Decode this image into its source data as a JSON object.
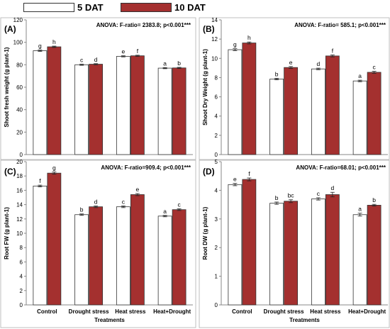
{
  "legend": {
    "series1_label": "5 DAT",
    "series2_label": "10 DAT"
  },
  "colors": {
    "series1_fill": "#ffffff",
    "series2_fill": "#a4302f",
    "bar_stroke": "#333333"
  },
  "chart_data": [
    {
      "type": "bar",
      "panel": "(A)",
      "anova": "ANOVA: F-ratio= 2383.8; p<0.001***",
      "ylabel": "Shoot fresh weight (g plant-1)",
      "xlabel": "",
      "ylim": [
        0,
        120
      ],
      "yticks": [
        0,
        20,
        40,
        60,
        80,
        100,
        120
      ],
      "categories": [
        "",
        "",
        "",
        ""
      ],
      "series": [
        {
          "values": [
            92.5,
            80.0,
            87.5,
            77.0
          ],
          "errors": [
            0.6,
            0.5,
            0.5,
            0.5
          ],
          "letters": [
            "g",
            "c",
            "e",
            "a"
          ]
        },
        {
          "values": [
            96.0,
            80.5,
            88.0,
            77.2
          ],
          "errors": [
            0.6,
            0.5,
            0.5,
            0.5
          ],
          "letters": [
            "h",
            "d",
            "f",
            "b"
          ]
        }
      ]
    },
    {
      "type": "bar",
      "panel": "(B)",
      "anova": "ANOVA: F-ratio= 585.1; p<0.001***",
      "ylabel": "Shoot Dry Weight (g plant-1)",
      "xlabel": "",
      "ylim": [
        0,
        14
      ],
      "yticks": [
        0,
        2,
        4,
        6,
        8,
        10,
        12,
        14
      ],
      "categories": [
        "",
        "",
        "",
        ""
      ],
      "series": [
        {
          "values": [
            10.9,
            7.85,
            8.9,
            7.65
          ],
          "errors": [
            0.1,
            0.08,
            0.08,
            0.08
          ],
          "letters": [
            "g",
            "b",
            "d",
            "a"
          ]
        },
        {
          "values": [
            11.6,
            9.05,
            10.25,
            8.55
          ],
          "errors": [
            0.1,
            0.1,
            0.1,
            0.1
          ],
          "letters": [
            "h",
            "e",
            "f",
            "c"
          ]
        }
      ]
    },
    {
      "type": "bar",
      "panel": "(C)",
      "anova": "ANOVA: F-ratio=909.4; p<0.001***",
      "ylabel": "Root FW (g plant-1)",
      "xlabel": "Treatments",
      "ylim": [
        0,
        20
      ],
      "yticks": [
        0,
        2,
        4,
        6,
        8,
        10,
        12,
        14,
        16,
        18,
        20
      ],
      "categories": [
        "Control",
        "Drought stress",
        "Heat stress",
        "Heat+Drought"
      ],
      "series": [
        {
          "values": [
            16.6,
            12.6,
            13.7,
            12.4
          ],
          "errors": [
            0.12,
            0.1,
            0.12,
            0.1
          ],
          "letters": [
            "f",
            "b",
            "c",
            "a"
          ]
        },
        {
          "values": [
            18.4,
            13.7,
            15.4,
            13.3
          ],
          "errors": [
            0.15,
            0.12,
            0.15,
            0.12
          ],
          "letters": [
            "g",
            "d",
            "e",
            "c"
          ]
        }
      ]
    },
    {
      "type": "bar",
      "panel": "(D)",
      "anova": "ANOVA: F-ratio=68.01; p<0.001***",
      "ylabel": "Root DW (g plant-1)",
      "xlabel": "Treatments",
      "ylim": [
        0,
        5
      ],
      "yticks": [
        0,
        1,
        2,
        3,
        4,
        5
      ],
      "categories": [
        "Control",
        "Drought stress",
        "Heat stress",
        "Heat+Drought"
      ],
      "series": [
        {
          "values": [
            4.2,
            3.55,
            3.7,
            3.15
          ],
          "errors": [
            0.04,
            0.04,
            0.04,
            0.05
          ],
          "letters": [
            "e",
            "b",
            "c",
            "a"
          ]
        },
        {
          "values": [
            4.38,
            3.62,
            3.85,
            3.48
          ],
          "errors": [
            0.05,
            0.05,
            0.08,
            0.03
          ],
          "letters": [
            "f",
            "bc",
            "d",
            "b"
          ]
        }
      ]
    }
  ]
}
